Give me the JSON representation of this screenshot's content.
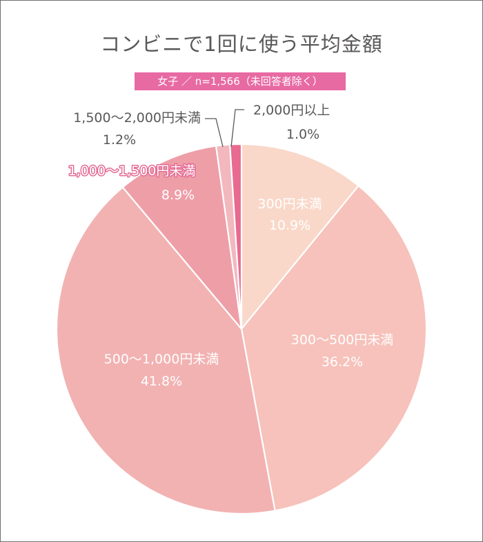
{
  "chart_data": {
    "type": "pie",
    "title": "コンビニで1回に使う平均金額",
    "subtitle": "女子 ／ n=1,566（未回答者除く）",
    "slices": [
      {
        "label": "300円未満",
        "value": 10.9,
        "value_label": "10.9%",
        "color": "#f9d8c9"
      },
      {
        "label": "300〜500円未満",
        "value": 36.2,
        "value_label": "36.2%",
        "color": "#f6c2bb"
      },
      {
        "label": "500〜1,000円未満",
        "value": 41.8,
        "value_label": "41.8%",
        "color": "#f2b2b2"
      },
      {
        "label": "1,000〜1,500円未満",
        "value": 8.9,
        "value_label": "8.9%",
        "color": "#ee9ea7"
      },
      {
        "label": "1,500〜2,000円未満",
        "value": 1.2,
        "value_label": "1.2%",
        "color": "#f2b8be"
      },
      {
        "label": "2,000円以上",
        "value": 1.0,
        "value_label": "1.0%",
        "color": "#e86a91"
      }
    ],
    "start_angle": "top",
    "direction": "clockwise"
  }
}
